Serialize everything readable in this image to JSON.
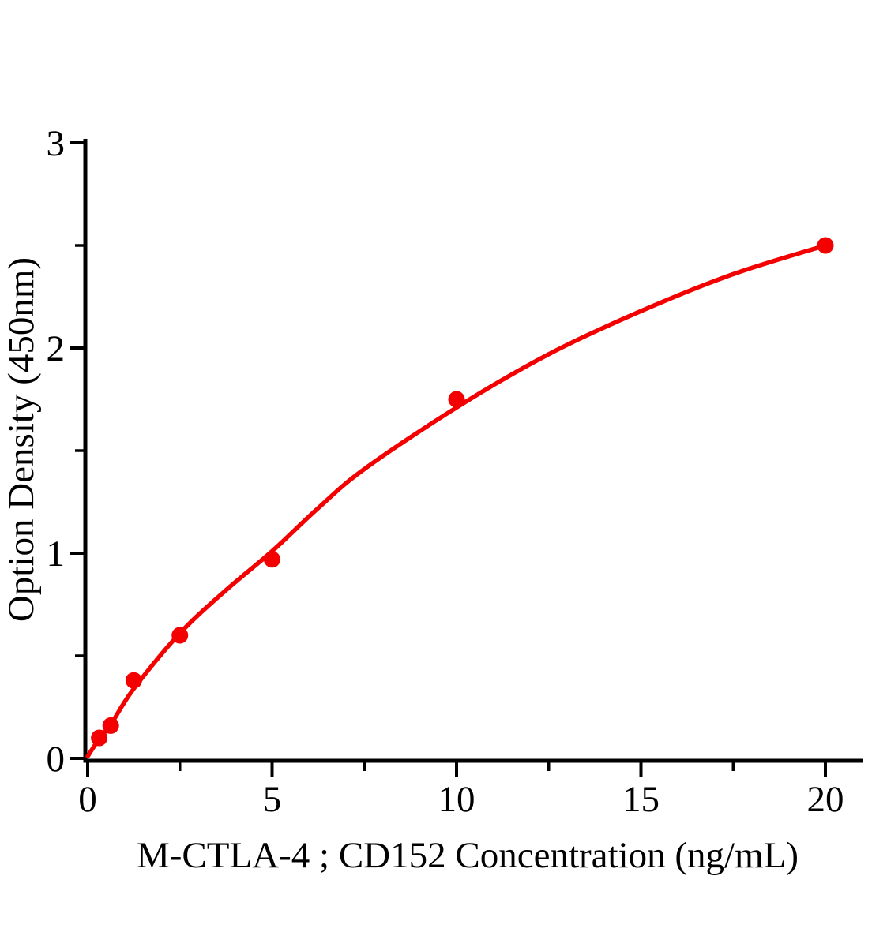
{
  "figure": {
    "background": "#ffffff"
  },
  "chart_data": {
    "type": "scatter",
    "title": "",
    "xlabel": "M-CTLA-4；CD152 Concentration（ng/mL）",
    "ylabel": "Option Density（450nm）",
    "series": [
      {
        "x": [
          0.3125,
          0.625,
          1.25,
          2.5,
          5,
          10,
          20
        ],
        "y": [
          0.1,
          0.16,
          0.38,
          0.6,
          0.97,
          1.75,
          2.5
        ],
        "marker": "circle",
        "marker_color": "#f40000"
      }
    ],
    "fit_curve": {
      "x": [
        0,
        0.3125,
        0.625,
        1.25,
        2.5,
        3.75,
        5,
        6.25,
        7.5,
        10,
        12.5,
        15,
        17.5,
        20
      ],
      "y": [
        0.01,
        0.095,
        0.165,
        0.34,
        0.61,
        0.82,
        1.01,
        1.22,
        1.41,
        1.71,
        1.97,
        2.18,
        2.36,
        2.5
      ],
      "color": "#f40000"
    },
    "xlim": [
      0,
      21
    ],
    "ylim": [
      0,
      3
    ],
    "x_major_ticks": [
      0,
      5,
      10,
      15,
      20
    ],
    "x_major_tick_labels": [
      "0",
      "5",
      "10",
      "15",
      "20"
    ],
    "x_minor_ticks": [
      2.5,
      7.5,
      12.5,
      17.5
    ],
    "y_major_ticks": [
      0,
      1,
      2,
      3
    ],
    "y_major_tick_labels": [
      "0",
      "1",
      "2",
      "3"
    ],
    "y_minor_ticks": [
      0.5,
      1.5,
      2.5
    ],
    "grid": false,
    "legend": "none",
    "axis_color": "#000000",
    "text_color": "#000000"
  }
}
